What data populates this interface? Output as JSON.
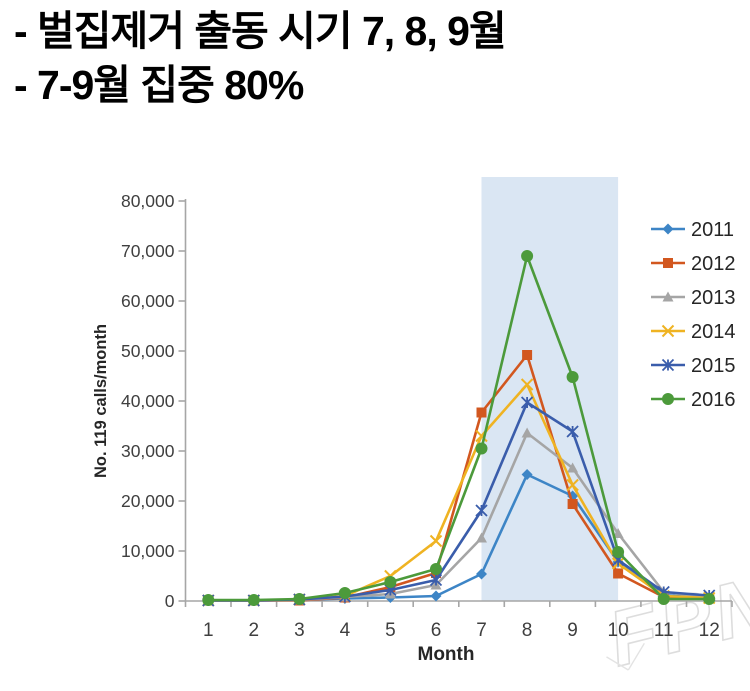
{
  "header": {
    "line1": "- 벌집제거 출동 시기 7, 8, 9월",
    "line2": "- 7-9월 집중 80%"
  },
  "watermark": "FPN",
  "chart_data": {
    "type": "line",
    "title": "",
    "xlabel": "Month",
    "ylabel": "No. 119 calls/month",
    "x": [
      1,
      2,
      3,
      4,
      5,
      6,
      7,
      8,
      9,
      10,
      11,
      12
    ],
    "ylim": [
      0,
      80000
    ],
    "ytick_step": 10000,
    "grid": false,
    "legend_position": "right",
    "highlight_band": {
      "from_month": 7,
      "to_month": 10,
      "color": "#DAE6F3"
    },
    "axis_color": "#A6A6A6",
    "label_color": "#3F3F3F",
    "series": [
      {
        "name": "2011",
        "color": "#3D85C6",
        "marker": "diamond",
        "values": [
          100,
          100,
          200,
          500,
          700,
          1000,
          5400,
          25300,
          21000,
          7800,
          1200,
          500
        ]
      },
      {
        "name": "2012",
        "color": "#D2571F",
        "marker": "square",
        "values": [
          100,
          100,
          100,
          700,
          2800,
          5600,
          37700,
          49200,
          19400,
          5500,
          800,
          500
        ]
      },
      {
        "name": "2013",
        "color": "#A5A5A5",
        "marker": "triangle",
        "values": [
          100,
          100,
          200,
          800,
          1400,
          3200,
          12600,
          33600,
          26600,
          13500,
          1800,
          700
        ]
      },
      {
        "name": "2014",
        "color": "#EFB322",
        "marker": "x",
        "values": [
          100,
          100,
          300,
          1000,
          5000,
          12000,
          33000,
          43300,
          23200,
          7500,
          1000,
          600
        ]
      },
      {
        "name": "2015",
        "color": "#3A5DAB",
        "marker": "star",
        "values": [
          100,
          100,
          300,
          900,
          2200,
          4200,
          18100,
          39700,
          33900,
          8200,
          1800,
          1100
        ]
      },
      {
        "name": "2016",
        "color": "#4C9A3B",
        "marker": "circle",
        "values": [
          200,
          200,
          400,
          1600,
          3800,
          6400,
          30500,
          69000,
          44800,
          9800,
          400,
          400
        ]
      }
    ]
  }
}
